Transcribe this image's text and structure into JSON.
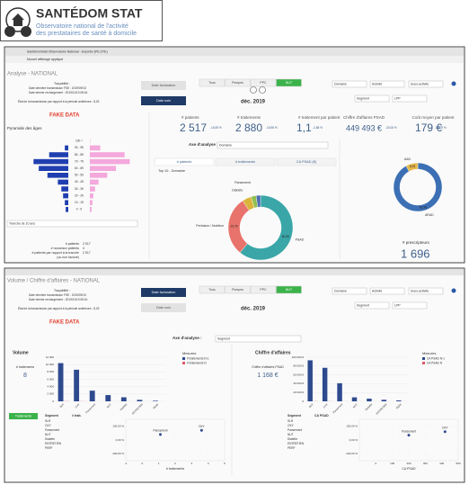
{
  "logo": {
    "title": "SANTÉDOM STAT",
    "subtitle": [
      "Observatoire national de l'activité",
      "des prestataires de santé à domicile"
    ]
  },
  "screen1": {
    "window_title": "SantéDomStat Observatoire National - Exporter (PILOTE)",
    "notice": "Nouvel affichage appliqué",
    "page_title": "Analyse - NATIONAL",
    "trace_title": "Traçabilité :",
    "trace_lines": [
      "Date dernière transmission FSE : 2019/09/13",
      "Date dernier rechargement : 2019/11/19 08:16"
    ],
    "state_line": "État de la transmission par rapport à la période antérieure : 8,03",
    "date_buttons": [
      "Date facturation",
      "Date soin"
    ],
    "domain_tabs": [
      "Tous",
      "Pompes",
      "PPC",
      "NUT"
    ],
    "period": "déc. 2019",
    "filters": [
      "Domaine",
      "Activité",
      "Sous-activité",
      "Segment",
      "LPP"
    ],
    "fake": "FAKE DATA",
    "kpis": [
      {
        "label": "# patients",
        "value": "2 517",
        "delta": "-16,55 %"
      },
      {
        "label": "# traitements",
        "value": "2 880",
        "delta": "-18,95 %"
      },
      {
        "label": "# traitement par patient",
        "value": "1,1",
        "delta": "-2,88 %"
      },
      {
        "label": "Chiffre d'affaires PSAD",
        "value": "449 493 €",
        "delta": "-30,05 %"
      },
      {
        "label": "Coût moyen par patient",
        "value": "179 €",
        "delta": "-16,09 %"
      }
    ],
    "axis_label": "Axe d'analyse :",
    "axis_select": "Domaine",
    "measure_tabs": [
      "# patients",
      "# traitements",
      "CA PSAD (€)"
    ],
    "top_title": "Top 10 - Domaine",
    "pyramid": {
      "type": "bar",
      "title": "Pyramide des âges",
      "categories": [
        "100 +",
        "90 - 99",
        "80 - 89",
        "70 - 79",
        "60 - 69",
        "50 - 59",
        "40 - 49",
        "30 - 39",
        "20 - 29",
        "10 - 19",
        "0 - 9"
      ],
      "series": [
        {
          "color": "#1f3fb0",
          "values": [
            0,
            20,
            110,
            200,
            170,
            120,
            60,
            40,
            30,
            20,
            15
          ]
        },
        {
          "color": "#f4a8dc",
          "values": [
            2,
            60,
            200,
            230,
            150,
            100,
            50,
            30,
            20,
            15,
            10
          ]
        }
      ],
      "xlim": [
        0,
        300
      ],
      "select": "Tranche de 10 ans"
    },
    "stats": [
      {
        "label": "# patients",
        "value": "2 517"
      },
      {
        "label": "# nouveaux patients",
        "value": "4"
      },
      {
        "label": "# patients par rapport à la tranche",
        "value": "2 517"
      },
      {
        "label": "(ou non facturé)"
      }
    ],
    "domain_donut": {
      "type": "pie",
      "categories": [
        "PSAD",
        "Perfusion / Nutrition",
        "Diabète",
        "Pansement",
        null
      ],
      "values": [
        60.95,
        29.76,
        4.5,
        2.6,
        2.19
      ],
      "value_labels": [
        "60,95",
        "29,76",
        null,
        null,
        null
      ],
      "colors": [
        "#3aa6a8",
        "#e8736c",
        "#d9b43a",
        "#8fbf4d",
        "#4c6fb0"
      ]
    },
    "provider_donut": {
      "type": "pie",
      "categories": [
        "ARAD",
        "AAD"
      ],
      "values": [
        91.98,
        8.02
      ],
      "value_labels": [
        "91,98",
        "8,02"
      ],
      "colors": [
        "#3c6fb4",
        "#e6b84a"
      ]
    },
    "prescribers": {
      "label": "# prescripteurs",
      "value": "1 696"
    }
  },
  "screen2": {
    "page_title": "Volume / Chiffre d'affaires - NATIONAL",
    "trace_title": "Traçabilité :",
    "trace_lines": [
      "Date dernière transmission FSE : 2019/09/13",
      "Date dernier rechargement : 2019/11/19 08:16"
    ],
    "state_line": "État de la transmission par rapport à la période antérieure : 8,03",
    "date_buttons": [
      "Date facturation",
      "Date soin"
    ],
    "domain_tabs": [
      "Tous",
      "Pompes",
      "PPC",
      "NUT"
    ],
    "period": "déc. 2019",
    "filters": [
      "Domaine",
      "Activité",
      "Sous-activité",
      "Segment",
      "LPP"
    ],
    "fake": "FAKE DATA",
    "axis_label": "Axe d'analyse :",
    "axis_select": "Segment",
    "legend_title": "Mesures",
    "volume": {
      "title": "Volume",
      "kpi_label": "# traitements",
      "kpi_value": "8",
      "chart": {
        "type": "bar",
        "categories": [
          "SLR",
          "OXY",
          "Pansement",
          "NUT",
          "Diabète",
          "ENTRETIEN",
          "PERF"
        ],
        "series": [
          {
            "name": "# traitements N-1",
            "color": "#2e4a8f",
            "values": [
              10400,
              8600,
              2900,
              1700,
              1100,
              400,
              150
            ]
          },
          {
            "name": "# traitements N",
            "color": "#e05a6a",
            "values": [
              40,
              30,
              10,
              8,
              5,
              2,
              1
            ]
          }
        ],
        "ylim": [
          0,
          12000
        ],
        "yticks": [
          0,
          {
            "value": 2000,
            "label": "2 000"
          },
          {
            "value": 4000,
            "label": "4 000"
          },
          {
            "value": 6000,
            "label": "6 000"
          },
          {
            "value": 8000,
            "label": "8 000"
          },
          {
            "value": 10000,
            "label": "10 000"
          },
          {
            "value": 12000,
            "label": "12 000"
          }
        ]
      }
    },
    "revenue": {
      "title": "Chiffre d'affaires",
      "kpi_label": "Chiffre d'affaires PSAD",
      "kpi_value": "1 168 €",
      "chart": {
        "type": "bar",
        "categories": [
          "SLR",
          "OXY",
          "Pansement",
          "NUT",
          "Diabète",
          "ENTRETIEN",
          "PERF"
        ],
        "series": [
          {
            "name": "CA PSAD N-1",
            "color": "#2e4a8f",
            "values": [
              93000,
              76000,
              41000,
              9000,
              6000,
              3500,
              2000
            ]
          },
          {
            "name": "CA PSAD N",
            "color": "#e05a6a",
            "values": [
              300,
              200,
              100,
              50,
              30,
              10,
              5
            ]
          }
        ],
        "ylim": [
          0,
          100000
        ],
        "yticks": [
          0,
          {
            "value": 20000,
            "label": "20 000 €"
          },
          {
            "value": 40000,
            "label": "40 000 €"
          },
          {
            "value": 60000,
            "label": "60 000 €"
          },
          {
            "value": 80000,
            "label": "80 000 €"
          },
          {
            "value": 100000,
            "label": "100 000 €"
          }
        ]
      }
    },
    "treatments_button": "Traitements",
    "table_left": {
      "header": [
        "Segment",
        "# trait."
      ],
      "rows": [
        "SLR",
        "OXY",
        "Pansement",
        "NUT",
        "Diabète",
        "ENTRETIEN",
        "PERF"
      ]
    },
    "table_right": {
      "header": [
        "Segment",
        "CA PSAD"
      ],
      "rows": [
        "SLR",
        "OXY",
        "Pansement",
        "NUT",
        "Diabète",
        "ENTRETIEN",
        "PERF"
      ]
    },
    "scatter_left": {
      "type": "scatter",
      "x_label": "# traitements",
      "categories": [
        "Pansement",
        "OXY"
      ],
      "x": [
        1.1,
        3.6
      ],
      "values": [
        40,
        70
      ],
      "xlim": [
        -1,
        5
      ],
      "xticks": [
        -1,
        0,
        1,
        2,
        3,
        4,
        5
      ],
      "ylim": [
        -150,
        150
      ],
      "yticks": [
        {
          "value": -100,
          "label": "-100,00 %"
        },
        {
          "value": 0,
          "label": "0,00 %"
        },
        {
          "value": 100,
          "label": "100,00 %"
        }
      ]
    },
    "scatter_right": {
      "type": "scatter",
      "x_label": "CA PSAD",
      "categories": [
        "Pansement",
        "OXY"
      ],
      "x": [
        200,
        420
      ],
      "values": [
        35,
        60
      ],
      "xlim": [
        -100,
        500
      ],
      "xticks": [
        0,
        100,
        200,
        300,
        400,
        500
      ],
      "ylim": [
        -150,
        150
      ],
      "yticks": [
        {
          "value": -100,
          "label": "-100,00 %"
        },
        {
          "value": 0,
          "label": "0,00 %"
        },
        {
          "value": 100,
          "label": "100,00 %"
        }
      ]
    }
  }
}
